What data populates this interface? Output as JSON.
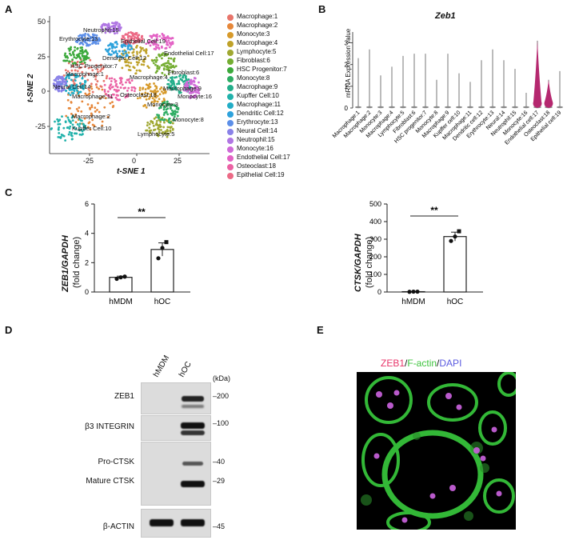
{
  "panels": {
    "A": "A",
    "B": "B",
    "C": "C",
    "D": "D",
    "E": "E"
  },
  "colors": {
    "macrophage_1": "#e8756b",
    "macrophage_2": "#e6873a",
    "monocyte_3": "#d79a2b",
    "macrophage_4": "#bfa22a",
    "lymphocyte_5": "#a0a832",
    "fibroblast_6": "#74ad32",
    "hsc_7": "#3ca93c",
    "monocyte_8": "#2ead63",
    "macrophage_9": "#23ae8a",
    "kupffer_10": "#21b2ab",
    "macrophage_11": "#22adc6",
    "dendritic_12": "#2ea2dc",
    "erythrocyte_13": "#5c8fe8",
    "neural_14": "#8a82e8",
    "neutrophil_15": "#b076e3",
    "monocyte_16": "#cf6ad8",
    "endothelial_17": "#e363c5",
    "osteoclast_18": "#eb62a4",
    "epithelial_19": "#ec6a86",
    "violin_highlight": "#b5286f",
    "bar_fill": "#ffffff",
    "zeb1_text": "#e8356a",
    "factin_text": "#3fc43f",
    "dapi_text": "#5b5be0"
  },
  "tsne": {
    "xlabel": "t-SNE 1",
    "ylabel": "t-SNE 2",
    "xticks": [
      "-25",
      "0",
      "25"
    ],
    "yticks": [
      "50",
      "25",
      "0",
      "-25"
    ],
    "legend": [
      "Macrophage:1",
      "Macrophage:2",
      "Monocyte:3",
      "Macrophage:4",
      "Lymphocyte:5",
      "Fibroblast:6",
      "HSC Progenitor:7",
      "Monocyte:8",
      "Macrophage:9",
      "Kupffer Cell:10",
      "Macrophage:11",
      "Dendritic Cell:12",
      "Erythrocyte:13",
      "Neural Cell:14",
      "Neutrophil:15",
      "Monocyte:16",
      "Endothelial Cell:17",
      "Osteoclast:18",
      "Epithelial Cell:19"
    ],
    "cluster_labels": [
      "Neutrophil:15",
      "Erythrocyte:13",
      "Epithelial Cell:19",
      "Endothelial Cell:17",
      "Dendritic Cell:12",
      "HSC Progenitor:7",
      "Fibroblast:6",
      "Macrophage:1",
      "Macrophage:4",
      "Neural Cell:14",
      "Macrophage:9",
      "Macrophage:11",
      "Osteoclast:18",
      "Monocyte:16",
      "Monocyte:3",
      "Monocyte:8",
      "Macrophage:2",
      "Kupffer Cell:10",
      "Lymphocyte:5"
    ]
  },
  "chart_data": [
    {
      "type": "scatter",
      "title": "",
      "xlabel": "t-SNE 1",
      "ylabel": "t-SNE 2",
      "xticks": [
        -25,
        0,
        25
      ],
      "yticks": [
        -25,
        0,
        25,
        50
      ],
      "series_names": [
        "Macrophage:1",
        "Macrophage:2",
        "Monocyte:3",
        "Macrophage:4",
        "Lymphocyte:5",
        "Fibroblast:6",
        "HSC Progenitor:7",
        "Monocyte:8",
        "Macrophage:9",
        "Kupffer Cell:10",
        "Macrophage:11",
        "Dendritic Cell:12",
        "Erythrocyte:13",
        "Neural Cell:14",
        "Neutrophil:15",
        "Monocyte:16",
        "Endothelial Cell:17",
        "Osteoclast:18",
        "Epithelial Cell:19"
      ]
    },
    {
      "type": "violin",
      "title": "Zeb1",
      "ylabel": "mRNA Expression value",
      "categories": [
        "Macrophage:1",
        "Macrophage:2",
        "Monocyte:3",
        "Macrophage:4",
        "Lymphocyte:5",
        "Fibroblast:6",
        "HSC progenitor:7",
        "Monocyte:8",
        "Macrophage:9",
        "Kupffer cell:10",
        "Macrophage:11",
        "Dendritic cell:12",
        "Erythrocyte:13",
        "Neural:14",
        "Neutrophil:15",
        "Monocyte:16",
        "Endothelial cell:17",
        "Osteoclast:18",
        "Epithelial cell:19"
      ],
      "max_values": [
        2.3,
        2.7,
        1.5,
        1.9,
        2.4,
        2.5,
        2.5,
        1.3,
        2.5,
        1.6,
        1.2,
        2.2,
        2.7,
        2.2,
        1.8,
        0.7,
        3.1,
        1.3,
        1.7
      ],
      "highlighted": [
        "Endothelial cell:17",
        "Osteoclast:18"
      ],
      "yticks": [
        0,
        1,
        2,
        3
      ]
    },
    {
      "type": "bar",
      "title": "",
      "ylabel": "ZEB1/GAPDH (fold change)",
      "categories": [
        "hMDM",
        "hOC"
      ],
      "values": [
        1.0,
        2.9
      ],
      "errors": [
        0.08,
        0.45
      ],
      "points": [
        [
          0.9,
          1.0,
          1.05
        ],
        [
          2.3,
          3.0,
          3.4
        ]
      ],
      "ylim": [
        0,
        6
      ],
      "yticks": [
        0,
        2,
        4,
        6
      ],
      "significance": "**"
    },
    {
      "type": "bar",
      "title": "",
      "ylabel": "CTSK/GAPDH (fold change)",
      "categories": [
        "hMDM",
        "hOC"
      ],
      "values": [
        2,
        315
      ],
      "errors": [
        1,
        25
      ],
      "points": [
        [
          1,
          2,
          2
        ],
        [
          290,
          315,
          345
        ]
      ],
      "ylim": [
        0,
        500
      ],
      "yticks": [
        0,
        100,
        200,
        300,
        400,
        500
      ],
      "significance": "**"
    }
  ],
  "violin": {
    "title": "Zeb1",
    "ylabel": "mRNA Expression value",
    "yticks": [
      "0",
      "1",
      "2",
      "3"
    ]
  },
  "barC1": {
    "ylabel_gene": "ZEB1/GAPDH",
    "ylabel_unit": "(fold change)",
    "yticks": [
      "0",
      "2",
      "4",
      "6"
    ],
    "cats": [
      "hMDM",
      "hOC"
    ],
    "sig": "**"
  },
  "barC2": {
    "ylabel_gene": "CTSK/GAPDH",
    "ylabel_unit": "(fold change)",
    "yticks": [
      "0",
      "100",
      "200",
      "300",
      "400",
      "500"
    ],
    "cats": [
      "hMDM",
      "hOC"
    ],
    "sig": "**"
  },
  "blot": {
    "lanes": [
      "hMDM",
      "hOC"
    ],
    "kda": "(kDa)",
    "rows": [
      {
        "name": "ZEB1",
        "mw": "200"
      },
      {
        "name": "β3 INTEGRIN",
        "mw": "100"
      },
      {
        "name": "Pro-CTSK",
        "mw": "40"
      },
      {
        "name": "Mature CTSK",
        "mw": "29"
      },
      {
        "name": "β-ACTIN",
        "mw": "45"
      }
    ]
  },
  "micro": {
    "zeb1": "ZEB1",
    "sep1": "/",
    "factin": "F-actin",
    "sep2": "/",
    "dapi": "DAPI"
  }
}
